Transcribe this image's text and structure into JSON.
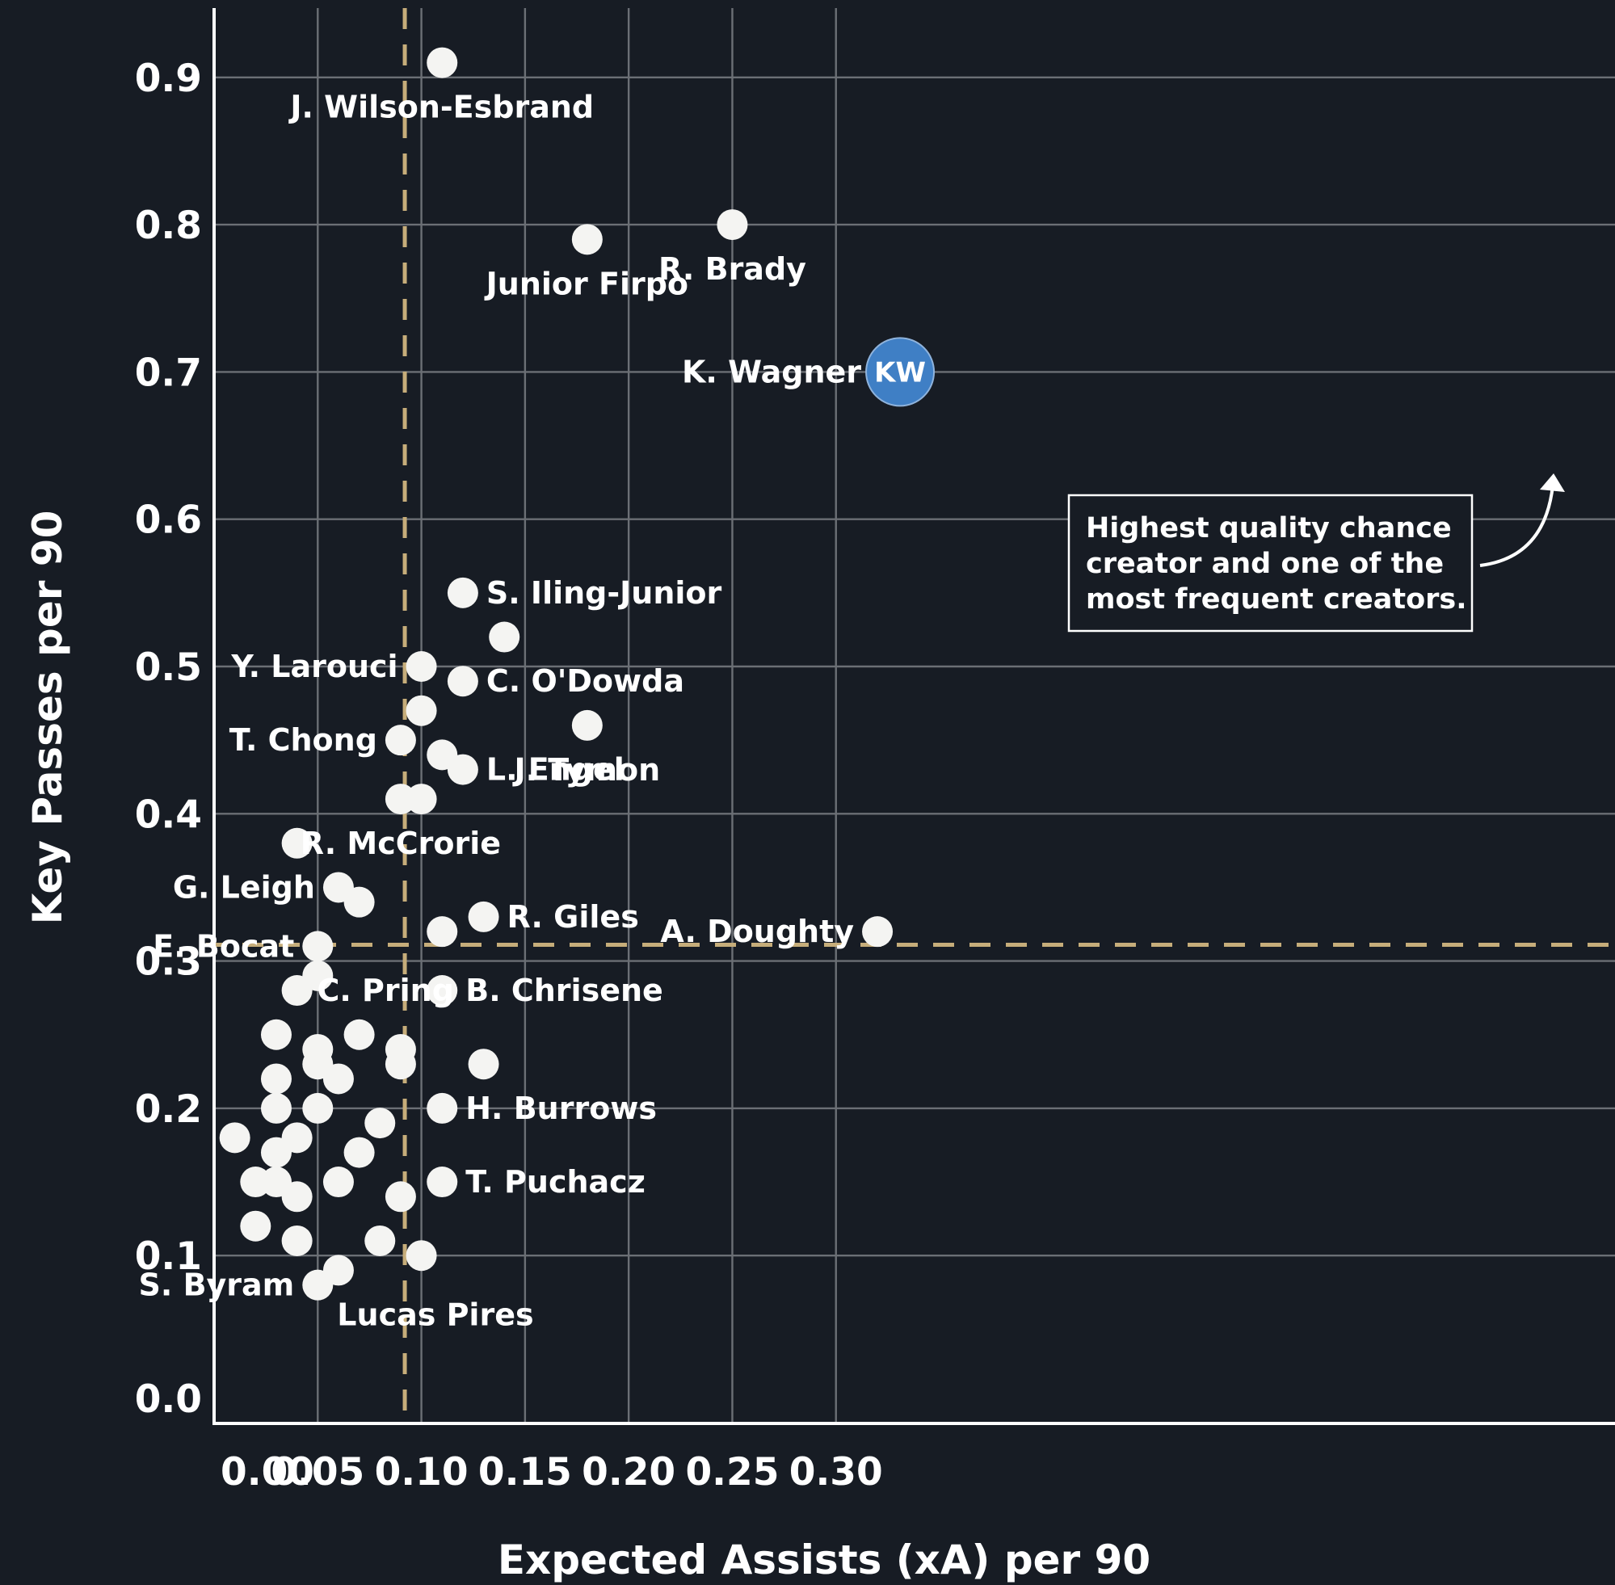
{
  "chart_data": {
    "type": "scatter",
    "xlabel": "Expected Assists (xA) per 90",
    "ylabel": "Key Passes per 90",
    "xlim": [
      0.0,
      0.33
    ],
    "ylim": [
      -0.02,
      0.96
    ],
    "x_ticks": [
      "0.00",
      "0.05",
      "0.10",
      "0.15",
      "0.20",
      "0.25",
      "0.30"
    ],
    "y_ticks": [
      "0.0",
      "0.1",
      "0.2",
      "0.3",
      "0.4",
      "0.5",
      "0.6",
      "0.7",
      "0.8",
      "0.9"
    ],
    "grid": true,
    "reference_lines": {
      "x": 0.092,
      "y": 0.311,
      "color": "#c6ad7a",
      "style": "dashed"
    },
    "colors": {
      "point": "#f4f4f2",
      "highlight": "#3f7fc5",
      "background": "#171c24"
    },
    "points": [
      {
        "x": 0.11,
        "y": 0.91,
        "label": "J. Wilson-Esbrand",
        "label_pos": "below"
      },
      {
        "x": 0.18,
        "y": 0.79,
        "label": "Junior Firpo",
        "label_pos": "below"
      },
      {
        "x": 0.25,
        "y": 0.8,
        "label": "R. Brady",
        "label_pos": "below"
      },
      {
        "x": 0.32,
        "y": 0.7,
        "label": "K. Wagner",
        "label_pos": "left",
        "highlight": true,
        "badge": "KW"
      },
      {
        "x": 0.12,
        "y": 0.55,
        "label": "S. Iling-Junior",
        "label_pos": "right"
      },
      {
        "x": 0.14,
        "y": 0.52
      },
      {
        "x": 0.1,
        "y": 0.5,
        "label": "Y. Larouci",
        "label_pos": "left"
      },
      {
        "x": 0.12,
        "y": 0.49,
        "label": "C. O'Dowda",
        "label_pos": "right"
      },
      {
        "x": 0.1,
        "y": 0.47
      },
      {
        "x": 0.18,
        "y": 0.46,
        "label": "J. Tymon",
        "label_pos": "below"
      },
      {
        "x": 0.09,
        "y": 0.45,
        "label": "T. Chong",
        "label_pos": "left"
      },
      {
        "x": 0.11,
        "y": 0.44
      },
      {
        "x": 0.12,
        "y": 0.43,
        "label": "L. Engel",
        "label_pos": "right"
      },
      {
        "x": 0.09,
        "y": 0.41,
        "label": "R. McCrorie",
        "label_pos": "below"
      },
      {
        "x": 0.1,
        "y": 0.41
      },
      {
        "x": 0.04,
        "y": 0.38
      },
      {
        "x": 0.06,
        "y": 0.35,
        "label": "G. Leigh",
        "label_pos": "left"
      },
      {
        "x": 0.07,
        "y": 0.34
      },
      {
        "x": 0.13,
        "y": 0.33,
        "label": "R. Giles",
        "label_pos": "right"
      },
      {
        "x": 0.11,
        "y": 0.32
      },
      {
        "x": 0.32,
        "y": 0.32,
        "label": "A. Doughty",
        "label_pos": "left"
      },
      {
        "x": 0.05,
        "y": 0.31,
        "label": "E. Bocat",
        "label_pos": "left"
      },
      {
        "x": 0.05,
        "y": 0.29
      },
      {
        "x": 0.04,
        "y": 0.28
      },
      {
        "x": 0.11,
        "y": 0.28,
        "label": "B. Chrisene",
        "label_pos": "right"
      },
      {
        "x": 0.09,
        "y": 0.28,
        "label": "C. Pring",
        "label_pos": "left",
        "label_only": true
      },
      {
        "x": 0.03,
        "y": 0.25
      },
      {
        "x": 0.07,
        "y": 0.25
      },
      {
        "x": 0.05,
        "y": 0.24
      },
      {
        "x": 0.09,
        "y": 0.24
      },
      {
        "x": 0.05,
        "y": 0.23
      },
      {
        "x": 0.09,
        "y": 0.23
      },
      {
        "x": 0.13,
        "y": 0.23
      },
      {
        "x": 0.03,
        "y": 0.22
      },
      {
        "x": 0.06,
        "y": 0.22
      },
      {
        "x": 0.03,
        "y": 0.2
      },
      {
        "x": 0.05,
        "y": 0.2
      },
      {
        "x": 0.11,
        "y": 0.2,
        "label": "H. Burrows",
        "label_pos": "right"
      },
      {
        "x": 0.08,
        "y": 0.19
      },
      {
        "x": 0.01,
        "y": 0.18
      },
      {
        "x": 0.04,
        "y": 0.18
      },
      {
        "x": 0.03,
        "y": 0.17
      },
      {
        "x": 0.07,
        "y": 0.17
      },
      {
        "x": 0.02,
        "y": 0.15
      },
      {
        "x": 0.03,
        "y": 0.15
      },
      {
        "x": 0.06,
        "y": 0.15
      },
      {
        "x": 0.11,
        "y": 0.15,
        "label": "T. Puchacz",
        "label_pos": "right"
      },
      {
        "x": 0.04,
        "y": 0.14
      },
      {
        "x": 0.09,
        "y": 0.14
      },
      {
        "x": 0.02,
        "y": 0.12
      },
      {
        "x": 0.04,
        "y": 0.11
      },
      {
        "x": 0.08,
        "y": 0.11
      },
      {
        "x": 0.1,
        "y": 0.1
      },
      {
        "x": 0.06,
        "y": 0.09,
        "label": "Lucas Pires",
        "label_pos": "below-right"
      },
      {
        "x": 0.05,
        "y": 0.08,
        "label": "S. Byram",
        "label_pos": "left"
      }
    ],
    "annotation": {
      "lines": [
        "Highest quality chance",
        "creator and one of the",
        "most frequent creators."
      ],
      "target": "K. Wagner"
    }
  }
}
